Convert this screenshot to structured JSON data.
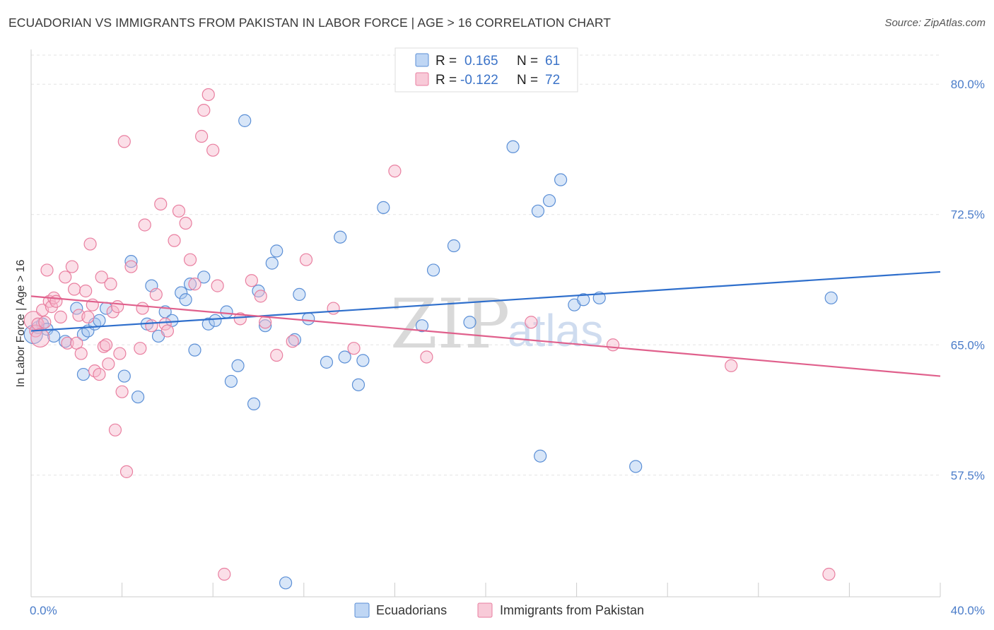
{
  "title": "ECUADORIAN VS IMMIGRANTS FROM PAKISTAN IN LABOR FORCE | AGE > 16 CORRELATION CHART",
  "source": "Source: ZipAtlas.com",
  "watermark": {
    "zip": "ZIP",
    "atlas": "atlas"
  },
  "legend_top": {
    "r_label": "R =",
    "n_label": "N =",
    "rows": [
      {
        "r": "0.165",
        "n": "61",
        "color": "#a9c8f0"
      },
      {
        "r": "-0.122",
        "n": "72",
        "color": "#f6b8cb"
      }
    ]
  },
  "chart_data": {
    "type": "scatter",
    "xlabel": "",
    "ylabel": "In Labor Force | Age > 16",
    "xlim": [
      0,
      40
    ],
    "ylim": [
      50.5,
      82.0
    ],
    "x_tick_labels": [
      "0.0%",
      "40.0%"
    ],
    "y_ticks": [
      57.5,
      65.0,
      72.5,
      80.0
    ],
    "y_tick_labels": [
      "57.5%",
      "65.0%",
      "72.5%",
      "80.0%"
    ],
    "grid": true,
    "legend_placement": "bottom-center",
    "series": [
      {
        "name": "Ecuadorians",
        "color": "#5b8fd6",
        "fill": "#a9c8f0",
        "line_color": "#2f6fcc",
        "trend": {
          "x": [
            0,
            40
          ],
          "y": [
            65.8,
            69.2
          ]
        },
        "points": [
          [
            0.1,
            65.6
          ],
          [
            0.3,
            66.0
          ],
          [
            0.5,
            66.2
          ],
          [
            0.7,
            65.9
          ],
          [
            1.0,
            65.5
          ],
          [
            1.5,
            65.2
          ],
          [
            2.0,
            67.1
          ],
          [
            2.3,
            65.6
          ],
          [
            2.5,
            65.8
          ],
          [
            2.8,
            66.2
          ],
          [
            3.0,
            66.4
          ],
          [
            3.3,
            67.1
          ],
          [
            2.3,
            63.3
          ],
          [
            4.1,
            63.2
          ],
          [
            4.4,
            69.8
          ],
          [
            4.7,
            62.0
          ],
          [
            5.1,
            66.2
          ],
          [
            5.3,
            68.4
          ],
          [
            5.6,
            65.5
          ],
          [
            5.9,
            66.9
          ],
          [
            6.2,
            66.4
          ],
          [
            6.6,
            68.0
          ],
          [
            6.8,
            67.6
          ],
          [
            7.0,
            68.5
          ],
          [
            7.2,
            64.7
          ],
          [
            7.6,
            68.9
          ],
          [
            7.8,
            66.2
          ],
          [
            8.1,
            66.4
          ],
          [
            8.6,
            66.9
          ],
          [
            8.8,
            62.9
          ],
          [
            9.1,
            63.8
          ],
          [
            9.4,
            77.9
          ],
          [
            9.8,
            61.6
          ],
          [
            10.0,
            68.1
          ],
          [
            10.3,
            66.1
          ],
          [
            10.6,
            69.7
          ],
          [
            10.8,
            70.4
          ],
          [
            11.6,
            65.3
          ],
          [
            11.8,
            67.9
          ],
          [
            12.2,
            66.5
          ],
          [
            13.0,
            64.0
          ],
          [
            13.6,
            71.2
          ],
          [
            13.8,
            64.3
          ],
          [
            14.4,
            62.7
          ],
          [
            14.6,
            64.1
          ],
          [
            15.5,
            72.9
          ],
          [
            17.2,
            66.1
          ],
          [
            17.7,
            69.3
          ],
          [
            18.6,
            70.7
          ],
          [
            19.3,
            66.3
          ],
          [
            21.2,
            76.4
          ],
          [
            22.3,
            72.7
          ],
          [
            22.4,
            58.6
          ],
          [
            22.8,
            73.3
          ],
          [
            23.3,
            74.5
          ],
          [
            23.9,
            67.3
          ],
          [
            24.3,
            67.6
          ],
          [
            25.0,
            67.7
          ],
          [
            26.6,
            58.0
          ],
          [
            35.2,
            67.7
          ],
          [
            11.2,
            51.3
          ]
        ]
      },
      {
        "name": "Immigrants from Pakistan",
        "color": "#e97fa0",
        "fill": "#f6b8cb",
        "line_color": "#e0608c",
        "trend": {
          "x": [
            0,
            40
          ],
          "y": [
            67.8,
            63.2
          ]
        },
        "points": [
          [
            0.1,
            66.4
          ],
          [
            0.2,
            65.8
          ],
          [
            0.3,
            66.2
          ],
          [
            0.4,
            65.4
          ],
          [
            0.5,
            67.0
          ],
          [
            0.6,
            66.3
          ],
          [
            0.7,
            69.3
          ],
          [
            0.8,
            67.5
          ],
          [
            0.9,
            67.2
          ],
          [
            1.0,
            67.7
          ],
          [
            1.1,
            67.5
          ],
          [
            1.3,
            66.6
          ],
          [
            1.5,
            68.9
          ],
          [
            1.6,
            65.1
          ],
          [
            1.8,
            69.5
          ],
          [
            1.9,
            68.2
          ],
          [
            2.0,
            65.1
          ],
          [
            2.1,
            66.7
          ],
          [
            2.2,
            64.5
          ],
          [
            2.4,
            68.1
          ],
          [
            2.6,
            70.8
          ],
          [
            2.7,
            67.3
          ],
          [
            2.5,
            66.6
          ],
          [
            2.8,
            63.5
          ],
          [
            3.0,
            63.3
          ],
          [
            3.1,
            68.9
          ],
          [
            3.2,
            64.9
          ],
          [
            3.3,
            65.0
          ],
          [
            3.4,
            63.9
          ],
          [
            3.5,
            68.5
          ],
          [
            3.6,
            66.9
          ],
          [
            3.7,
            60.1
          ],
          [
            3.8,
            67.2
          ],
          [
            3.9,
            64.5
          ],
          [
            4.0,
            62.3
          ],
          [
            4.1,
            76.7
          ],
          [
            4.2,
            57.7
          ],
          [
            4.4,
            69.5
          ],
          [
            4.8,
            64.8
          ],
          [
            4.9,
            67.1
          ],
          [
            5.0,
            71.9
          ],
          [
            5.3,
            66.1
          ],
          [
            5.5,
            67.9
          ],
          [
            5.7,
            73.1
          ],
          [
            5.9,
            66.2
          ],
          [
            6.0,
            65.8
          ],
          [
            6.3,
            71.0
          ],
          [
            6.5,
            72.7
          ],
          [
            6.8,
            72.0
          ],
          [
            7.0,
            69.9
          ],
          [
            7.2,
            68.5
          ],
          [
            7.5,
            77.0
          ],
          [
            7.6,
            78.5
          ],
          [
            7.8,
            79.4
          ],
          [
            8.0,
            76.2
          ],
          [
            8.2,
            68.4
          ],
          [
            8.5,
            51.8
          ],
          [
            9.2,
            66.5
          ],
          [
            9.7,
            68.7
          ],
          [
            10.1,
            67.8
          ],
          [
            10.3,
            66.3
          ],
          [
            10.8,
            64.4
          ],
          [
            11.5,
            65.2
          ],
          [
            12.1,
            69.9
          ],
          [
            13.3,
            67.1
          ],
          [
            14.2,
            64.8
          ],
          [
            16.0,
            75.0
          ],
          [
            17.4,
            64.3
          ],
          [
            22.0,
            66.3
          ],
          [
            25.6,
            65.0
          ],
          [
            30.8,
            63.8
          ],
          [
            35.1,
            51.8
          ]
        ]
      }
    ]
  }
}
